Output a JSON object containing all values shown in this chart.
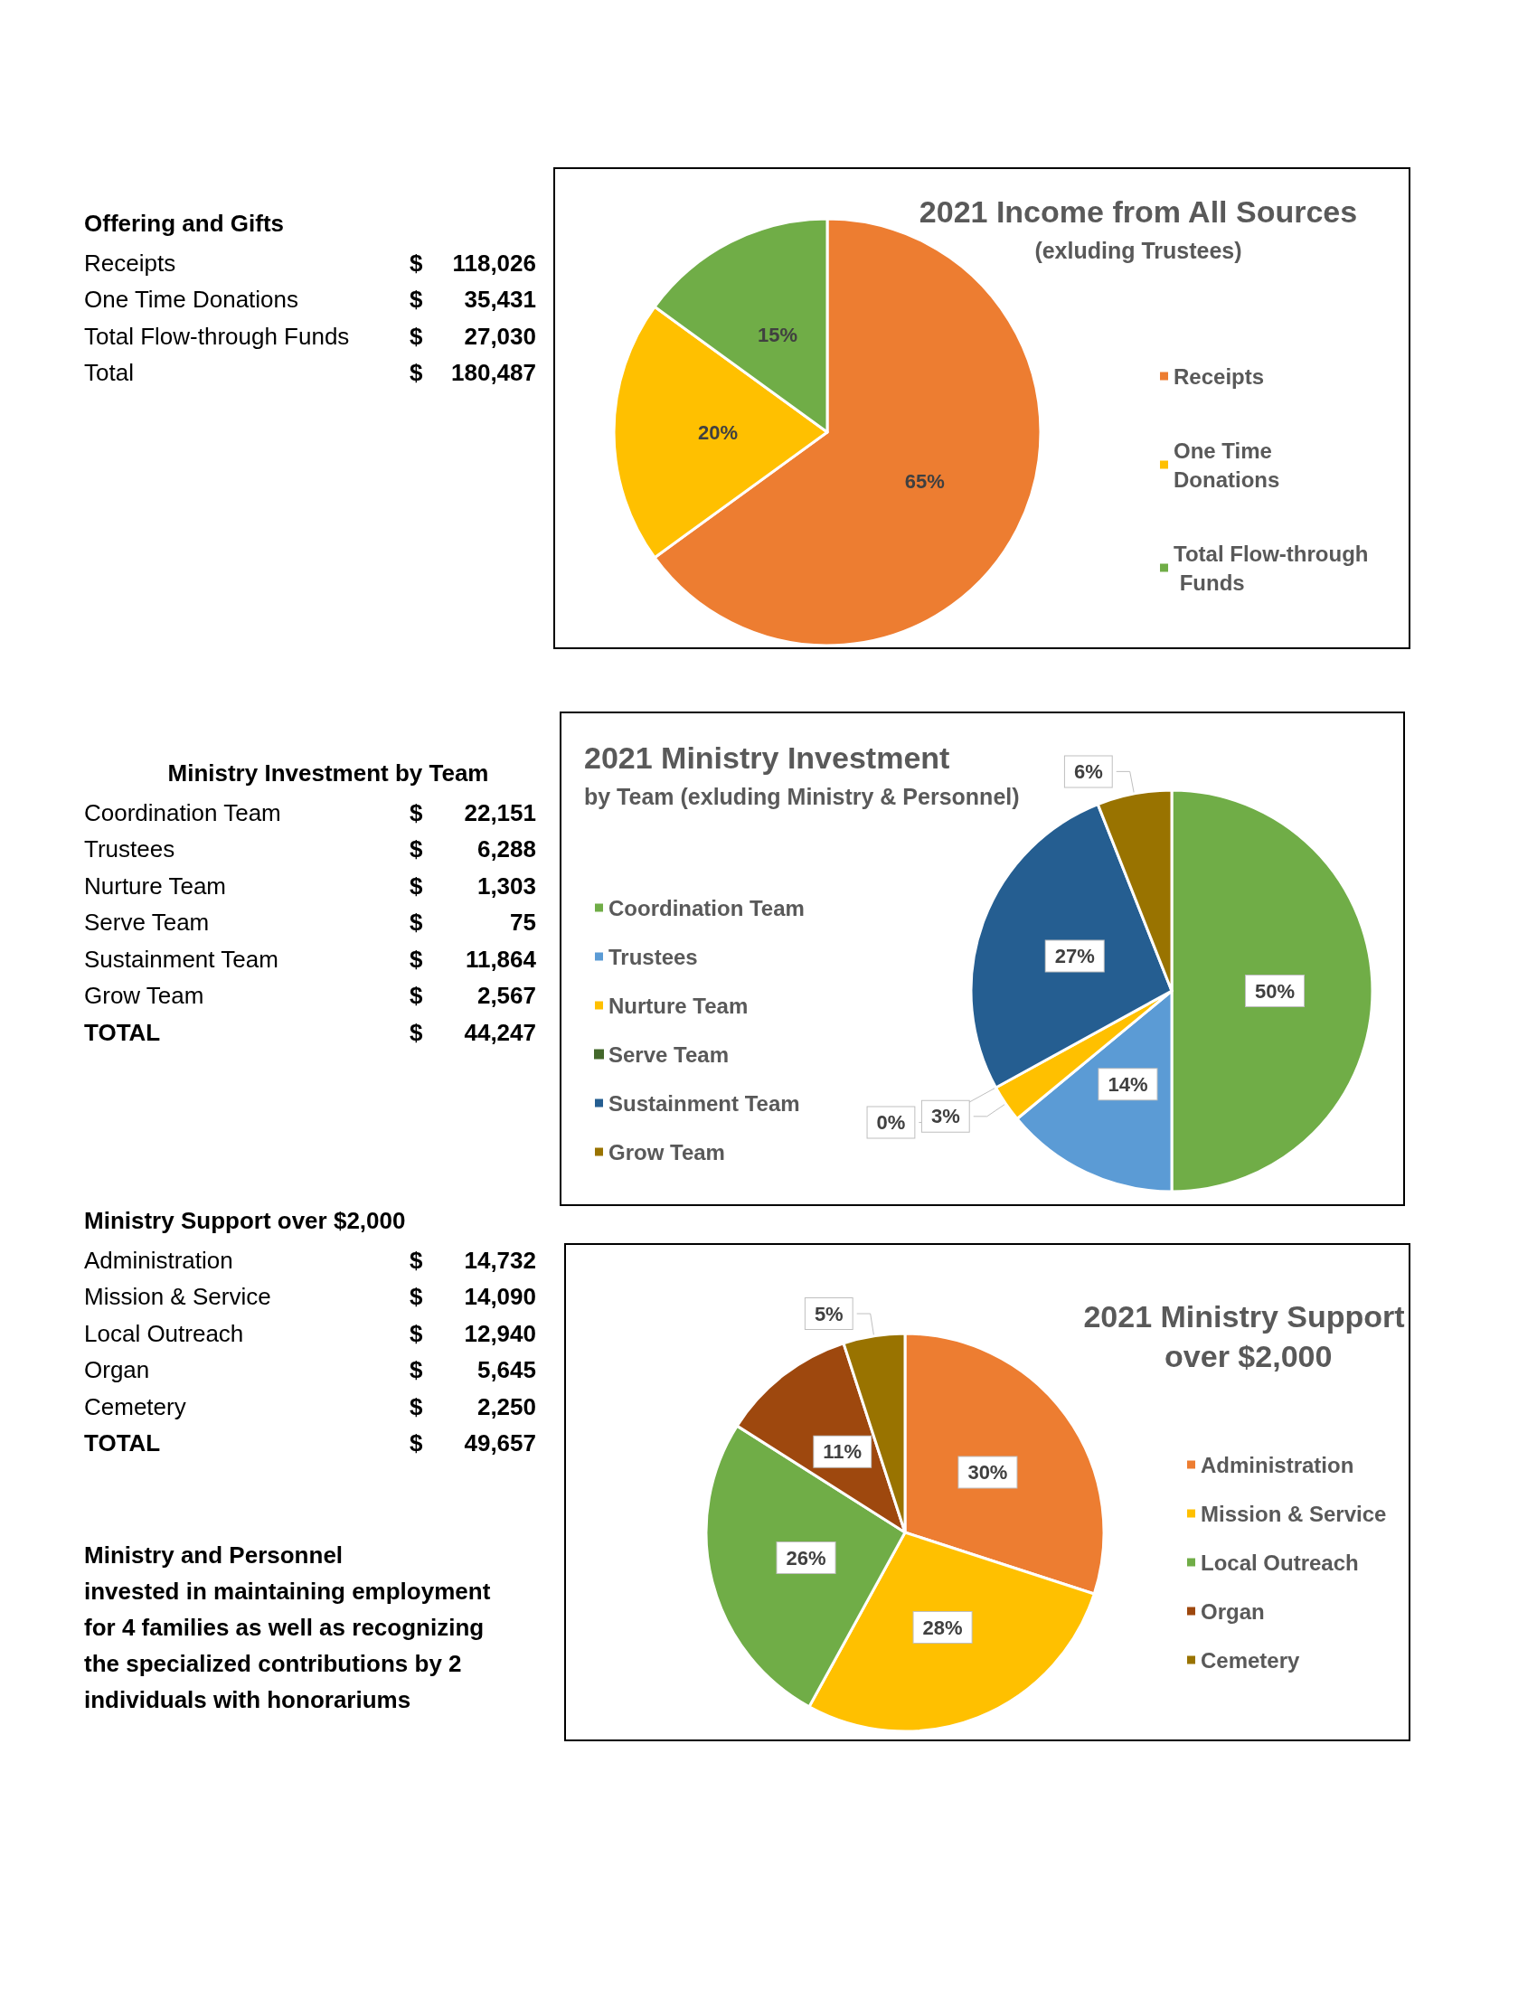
{
  "chart_data": [
    {
      "type": "other",
      "title": "Offering and Gifts",
      "annotations": [
        "Receipts",
        "$ 118,026",
        "One Time Donations",
        "$ 35,431",
        "Total Flow-through Funds",
        "$ 27,030",
        "Total",
        "$ 180,487"
      ]
    },
    {
      "type": "pie",
      "title": "2021 Income from All Sources",
      "subtitle": "(exluding Trustees)",
      "categories": [
        "Receipts",
        "One Time Donations",
        "Total Flow-through Funds"
      ],
      "values": [
        65,
        20,
        15
      ],
      "colors": [
        "#ed7d31",
        "#ffc000",
        "#70ad47"
      ],
      "value_labels": [
        "65%",
        "20%",
        "15%"
      ],
      "legend": "right"
    },
    {
      "type": "other",
      "title": "Ministry Investment by Team",
      "annotations": [
        "Coordination Team",
        "$ 22,151",
        "Trustees",
        "$ 6,288",
        "Nurture Team",
        "$ 1,303",
        "Serve Team",
        "$ 75",
        "Sustainment Team",
        "$ 11,864",
        "Grow Team",
        "$ 2,567",
        "TOTAL",
        "$ 44,247"
      ]
    },
    {
      "type": "pie",
      "title": "2021 Ministry Investment",
      "subtitle": "by Team (exluding Ministry & Personnel)",
      "categories": [
        "Coordination Team",
        "Trustees",
        "Nurture Team",
        "Serve Team",
        "Sustainment Team",
        "Grow Team"
      ],
      "values": [
        50,
        14,
        3,
        0,
        27,
        6
      ],
      "colors": [
        "#70ad47",
        "#5b9bd5",
        "#ffc000",
        "#43682b",
        "#255e91",
        "#997300"
      ],
      "value_labels": [
        "50%",
        "14%",
        "3%",
        "0%",
        "27%",
        "6%"
      ],
      "legend": "left"
    },
    {
      "type": "other",
      "title": "Ministry Support over $2,000",
      "annotations": [
        "Administration",
        "$ 14,732",
        "Mission & Service",
        "$ 14,090",
        "Local Outreach",
        "$ 12,940",
        "Organ",
        "$ 5,645",
        "Cemetery",
        "$ 2,250",
        "TOTAL",
        "$ 49,657"
      ]
    },
    {
      "type": "pie",
      "title": "2021 Ministry Support over $2,000",
      "categories": [
        "Administration",
        "Mission & Service",
        "Local Outreach",
        "Organ",
        "Cemetery"
      ],
      "values": [
        30,
        28,
        26,
        11,
        5
      ],
      "colors": [
        "#ed7d31",
        "#ffc000",
        "#70ad47",
        "#9e480e",
        "#997300"
      ],
      "value_labels": [
        "30%",
        "28%",
        "26%",
        "11%",
        "5%"
      ],
      "legend": "right"
    },
    {
      "type": "other",
      "title": "Ministry and Personnel",
      "annotations": [
        "invested in maintaining employment for 4 families as well as recognizing the specialized contributions by 2 individuals with honorariums"
      ]
    }
  ]
}
